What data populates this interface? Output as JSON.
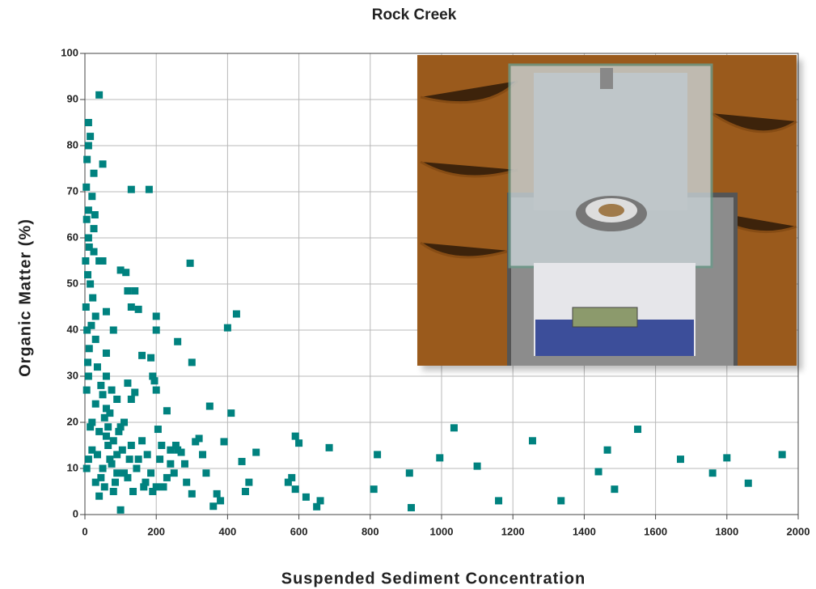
{
  "chart_data": {
    "type": "scatter",
    "title": "Rock Creek",
    "x_label": "Suspended Sediment Concentration",
    "y_label": "Organic Matter (%)",
    "xlim": [
      0,
      2000
    ],
    "ylim": [
      0,
      100
    ],
    "xticks": [
      0,
      200,
      400,
      600,
      800,
      1000,
      1200,
      1400,
      1600,
      1800,
      2000
    ],
    "yticks": [
      0,
      10,
      20,
      30,
      40,
      50,
      60,
      70,
      80,
      90,
      100
    ],
    "grid": true,
    "color": "#00827f",
    "x": [
      40,
      10,
      15,
      50,
      10,
      25,
      130,
      180,
      20,
      10,
      5,
      25,
      10,
      50,
      40,
      295,
      100,
      115,
      120,
      140,
      60,
      130,
      150,
      200,
      425,
      400,
      200,
      80,
      260,
      30,
      60,
      160,
      185,
      300,
      190,
      195,
      120,
      140,
      200,
      350,
      410,
      230,
      90,
      130,
      60,
      1035,
      1550,
      590,
      600,
      685,
      1255,
      1465,
      820,
      995,
      1100,
      1670,
      1800,
      1955,
      1760,
      1440,
      910,
      1485,
      1860,
      810,
      915,
      1160,
      1335,
      660,
      650,
      620,
      580,
      570,
      590,
      480,
      460,
      450,
      440,
      390,
      370,
      380,
      360,
      340,
      320,
      310,
      300,
      270,
      250,
      240,
      220,
      205,
      190,
      170,
      150,
      130,
      110,
      100,
      90,
      80,
      70,
      60,
      50,
      40,
      30,
      20,
      15,
      10,
      5,
      8,
      12,
      18,
      22,
      15,
      8,
      25,
      35,
      45,
      55,
      65,
      75,
      85,
      95,
      105,
      120,
      135,
      145,
      160,
      175,
      185,
      200,
      215,
      230,
      260,
      280,
      285,
      330,
      5,
      10,
      20,
      30,
      40,
      50,
      60,
      70,
      80,
      90,
      100,
      3,
      6,
      2,
      4,
      6,
      12,
      28,
      30,
      35,
      45,
      55,
      65,
      75,
      110,
      125,
      165,
      210,
      240,
      255
    ],
    "y": [
      91,
      85,
      82,
      76,
      80,
      74,
      70.5,
      70.5,
      69,
      66,
      64,
      62,
      60,
      55,
      55,
      54.5,
      53,
      52.5,
      48.5,
      48.5,
      44,
      45,
      44.5,
      43,
      43.5,
      40.5,
      40,
      40,
      37.5,
      38,
      35,
      34.5,
      34,
      33,
      30,
      29,
      28.5,
      26.5,
      27,
      23.5,
      22,
      22.5,
      25,
      25,
      23,
      18.8,
      18.5,
      17,
      15.5,
      14.5,
      16,
      14,
      13,
      12.3,
      10.5,
      12,
      12.3,
      13,
      9,
      9.3,
      9,
      5.5,
      6.8,
      5.5,
      1.5,
      3,
      3,
      3,
      1.7,
      3.8,
      8,
      7,
      5.5,
      13.5,
      7,
      5,
      11.5,
      15.8,
      4.5,
      3,
      1.8,
      9,
      16.5,
      15.8,
      4.5,
      13.5,
      9,
      11,
      6,
      18.5,
      5,
      7,
      12,
      15,
      20,
      1,
      9,
      5,
      12,
      17,
      10,
      4,
      7,
      14,
      19,
      30,
      27,
      33,
      36,
      41,
      47,
      50,
      52,
      57,
      32,
      28,
      21,
      15,
      11,
      7,
      18,
      14,
      8,
      5,
      10,
      16,
      13,
      9,
      6,
      15,
      8,
      14,
      11,
      7,
      13,
      10,
      12,
      20,
      24,
      18,
      26,
      30,
      22,
      16,
      13,
      19,
      45,
      40,
      55,
      71,
      77,
      58,
      65,
      43,
      13,
      8,
      6,
      19,
      27,
      9,
      12,
      6,
      12,
      14,
      15
    ]
  }
}
